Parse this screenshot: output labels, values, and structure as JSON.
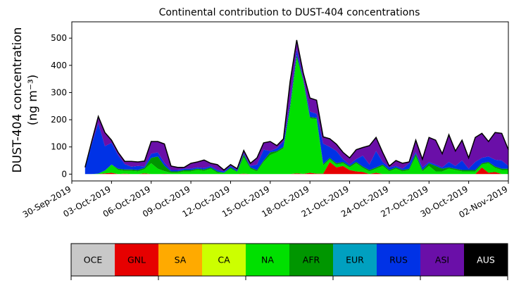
{
  "chart_data": {
    "type": "area",
    "stacked": true,
    "title": "Continental contribution to DUST-404 concentrations",
    "ylabel_line1": "DUST-404 concentration",
    "ylabel_line2": "(ng m⁻³)",
    "xlabel": "",
    "x_start": "2019-10-01",
    "x_step_days": 0.5,
    "xlim": [
      "2019-09-30",
      "2019-11-02"
    ],
    "ylim": [
      -25,
      560
    ],
    "yticks": [
      0,
      100,
      200,
      300,
      400,
      500
    ],
    "xticks": [
      "30-Sep-2019",
      "03-Oct-2019",
      "06-Oct-2019",
      "09-Oct-2019",
      "12-Oct-2019",
      "15-Oct-2019",
      "18-Oct-2019",
      "21-Oct-2019",
      "24-Oct-2019",
      "27-Oct-2019",
      "30-Oct-2019",
      "02-Nov-2019"
    ],
    "grid": false,
    "total_line_color": "#000000",
    "legend": {
      "placement": "bottom colorbar",
      "entries": [
        "OCE",
        "GNL",
        "SA",
        "CA",
        "NA",
        "AFR",
        "EUR",
        "RUS",
        "ASI",
        "AUS"
      ]
    },
    "series": [
      {
        "name": "OCE",
        "color": "#c8c8c8",
        "values": [
          0,
          0,
          0,
          0,
          0,
          0,
          0,
          0,
          0,
          0,
          0,
          0,
          0,
          0,
          0,
          0,
          0,
          0,
          0,
          0,
          0,
          0,
          0,
          0,
          0,
          0,
          0,
          0,
          0,
          0,
          0,
          0,
          0,
          0,
          0,
          0,
          0,
          0,
          0,
          0,
          0,
          0,
          0,
          0,
          0,
          0,
          0,
          0,
          0,
          0,
          0,
          0,
          0,
          0,
          0,
          0,
          0,
          0,
          0,
          0,
          0,
          0,
          0,
          0,
          0
        ]
      },
      {
        "name": "GNL",
        "color": "#e60000",
        "values": [
          0,
          0,
          0,
          3,
          5,
          0,
          2,
          0,
          0,
          3,
          0,
          0,
          1,
          0,
          0,
          0,
          0,
          0,
          0,
          0,
          0,
          0,
          0,
          0,
          2,
          0,
          0,
          0,
          0,
          0,
          0,
          0,
          3,
          1,
          5,
          2,
          2,
          45,
          25,
          30,
          15,
          10,
          8,
          0,
          5,
          0,
          0,
          0,
          0,
          0,
          0,
          0,
          0,
          0,
          0,
          0,
          0,
          0,
          0,
          0,
          25,
          5,
          8,
          0,
          0
        ]
      },
      {
        "name": "SA",
        "color": "#ffaa00",
        "values": [
          0,
          0,
          0,
          0,
          0,
          0,
          0,
          0,
          0,
          0,
          0,
          0,
          0,
          0,
          0,
          0,
          0,
          0,
          0,
          0,
          0,
          0,
          0,
          0,
          0,
          0,
          0,
          0,
          0,
          0,
          0,
          0,
          0,
          0,
          0,
          0,
          0,
          0,
          0,
          0,
          0,
          0,
          0,
          0,
          0,
          0,
          0,
          0,
          0,
          0,
          0,
          0,
          0,
          0,
          0,
          0,
          0,
          0,
          0,
          0,
          0,
          0,
          0,
          0,
          0
        ]
      },
      {
        "name": "CA",
        "color": "#ccff00",
        "values": [
          0,
          0,
          0,
          0,
          0,
          0,
          0,
          0,
          0,
          0,
          0,
          0,
          0,
          0,
          0,
          0,
          0,
          0,
          0,
          0,
          0,
          0,
          0,
          0,
          0,
          0,
          0,
          0,
          0,
          0,
          0,
          0,
          0,
          0,
          0,
          0,
          0,
          0,
          0,
          0,
          0,
          0,
          0,
          0,
          0,
          0,
          0,
          0,
          0,
          0,
          0,
          0,
          0,
          0,
          0,
          0,
          0,
          0,
          0,
          0,
          0,
          0,
          0,
          0,
          0
        ]
      },
      {
        "name": "NA",
        "color": "#00e000",
        "values": [
          0,
          0,
          2,
          10,
          30,
          15,
          10,
          12,
          10,
          15,
          40,
          20,
          10,
          5,
          5,
          10,
          10,
          15,
          12,
          20,
          5,
          5,
          20,
          8,
          60,
          20,
          10,
          45,
          70,
          80,
          95,
          240,
          425,
          340,
          200,
          200,
          30,
          10,
          10,
          10,
          10,
          30,
          15,
          10,
          15,
          30,
          10,
          20,
          10,
          15,
          65,
          10,
          30,
          10,
          10,
          20,
          15,
          10,
          10,
          10,
          10,
          35,
          15,
          15,
          15
        ]
      },
      {
        "name": "AFR",
        "color": "#009600",
        "values": [
          0,
          0,
          0,
          0,
          0,
          5,
          5,
          5,
          5,
          5,
          20,
          45,
          20,
          5,
          5,
          5,
          5,
          5,
          5,
          5,
          5,
          0,
          5,
          2,
          10,
          5,
          5,
          5,
          10,
          5,
          5,
          10,
          10,
          5,
          5,
          5,
          5,
          5,
          5,
          5,
          5,
          5,
          5,
          5,
          5,
          5,
          5,
          5,
          5,
          5,
          10,
          5,
          10,
          20,
          10,
          5,
          5,
          5,
          5,
          5,
          5,
          5,
          5,
          5,
          5
        ]
      },
      {
        "name": "EUR",
        "color": "#00a0c0",
        "values": [
          0,
          0,
          0,
          0,
          0,
          0,
          0,
          0,
          0,
          0,
          0,
          0,
          0,
          0,
          0,
          0,
          0,
          0,
          0,
          0,
          0,
          0,
          0,
          0,
          0,
          0,
          0,
          0,
          0,
          0,
          0,
          0,
          0,
          0,
          0,
          0,
          0,
          0,
          0,
          0,
          0,
          0,
          0,
          0,
          0,
          0,
          0,
          0,
          0,
          0,
          0,
          0,
          0,
          0,
          0,
          0,
          0,
          0,
          0,
          0,
          0,
          0,
          0,
          0,
          0
        ]
      },
      {
        "name": "RUS",
        "color": "#0032e6",
        "values": [
          20,
          110,
          185,
          90,
          80,
          50,
          20,
          10,
          15,
          5,
          15,
          15,
          10,
          5,
          5,
          5,
          5,
          5,
          5,
          5,
          5,
          5,
          5,
          5,
          5,
          5,
          20,
          40,
          5,
          10,
          20,
          15,
          20,
          5,
          20,
          15,
          75,
          40,
          45,
          10,
          5,
          10,
          40,
          20,
          60,
          10,
          10,
          5,
          5,
          20,
          5,
          10,
          5,
          5,
          5,
          20,
          10,
          35,
          5,
          30,
          20,
          20,
          25,
          30,
          10
        ]
      },
      {
        "name": "ASI",
        "color": "#6a0fa8",
        "values": [
          5,
          10,
          25,
          50,
          10,
          10,
          10,
          20,
          15,
          20,
          45,
          40,
          70,
          15,
          10,
          5,
          20,
          20,
          30,
          10,
          20,
          5,
          5,
          5,
          10,
          10,
          25,
          25,
          35,
          10,
          10,
          75,
          35,
          20,
          50,
          50,
          25,
          30,
          25,
          25,
          25,
          35,
          30,
          70,
          50,
          35,
          5,
          20,
          20,
          5,
          45,
          30,
          90,
          90,
          50,
          100,
          55,
          75,
          40,
          90,
          90,
          55,
          100,
          100,
          60
        ]
      },
      {
        "name": "AUS",
        "color": "#000000",
        "values": [
          0,
          0,
          0,
          0,
          0,
          0,
          0,
          0,
          0,
          0,
          0,
          0,
          0,
          0,
          0,
          0,
          0,
          0,
          0,
          0,
          0,
          0,
          0,
          0,
          0,
          0,
          0,
          0,
          0,
          0,
          0,
          0,
          0,
          0,
          0,
          0,
          0,
          0,
          0,
          0,
          0,
          0,
          0,
          0,
          0,
          0,
          0,
          0,
          0,
          0,
          0,
          0,
          0,
          0,
          0,
          0,
          0,
          0,
          0,
          0,
          0,
          0,
          0,
          0,
          0
        ]
      }
    ]
  }
}
